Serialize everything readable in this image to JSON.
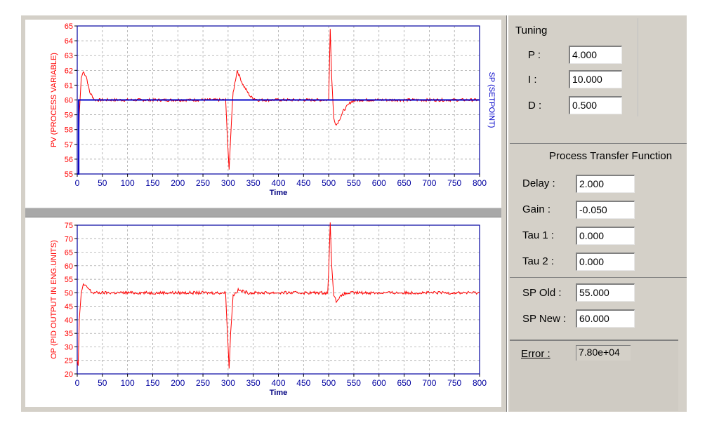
{
  "tuning": {
    "title": "Tuning",
    "p_label": "P :",
    "p_value": "4.000",
    "i_label": "I :",
    "i_value": "10.000",
    "d_label": "D :",
    "d_value": "0.500"
  },
  "process": {
    "title": "Process Transfer Function",
    "delay_label": "Delay :",
    "delay_value": "2.000",
    "gain_label": "Gain :",
    "gain_value": "-0.050",
    "tau1_label": "Tau 1 :",
    "tau1_value": "0.000",
    "tau2_label": "Tau 2 :",
    "tau2_value": "0.000"
  },
  "setpoint": {
    "old_label": "SP Old :",
    "old_value": "55.000",
    "new_label": "SP New :",
    "new_value": "60.000"
  },
  "error": {
    "label": "Error :",
    "value": "7.80e+04"
  },
  "colors": {
    "pv": "#ff0000",
    "sp": "#0000c8",
    "axis_frame": "#0000a0",
    "grid": "#9a9a9a"
  },
  "chart_data": [
    {
      "type": "line",
      "xlabel": "Time",
      "ylabel": "PV (PROCESS VARIABLE)",
      "ylabel_right": "SP (SETPOINT)",
      "xlim": [
        0,
        800
      ],
      "ylim": [
        55,
        65
      ],
      "xticks": [
        0,
        50,
        100,
        150,
        200,
        250,
        300,
        350,
        400,
        450,
        500,
        550,
        600,
        650,
        700,
        750,
        800
      ],
      "yticks": [
        55,
        56,
        57,
        58,
        59,
        60,
        61,
        62,
        63,
        64,
        65
      ],
      "grid": true,
      "series": [
        {
          "name": "PV (PROCESS VARIABLE)",
          "color": "#ff0000",
          "x": [
            0,
            2,
            4,
            8,
            12,
            18,
            25,
            35,
            60,
            100,
            200,
            295,
            300,
            302,
            305,
            310,
            318,
            330,
            345,
            360,
            400,
            480,
            500,
            503,
            506,
            510,
            515,
            520,
            530,
            545,
            560,
            620,
            700,
            800
          ],
          "y": [
            55,
            55,
            59.0,
            61.5,
            61.9,
            61.6,
            60.5,
            60.0,
            60.0,
            60.0,
            60.0,
            60.0,
            56.5,
            55.3,
            57.5,
            60.5,
            62.0,
            61.0,
            60.2,
            60.0,
            60.0,
            60.0,
            60.0,
            64.8,
            61.5,
            58.8,
            58.3,
            58.6,
            59.3,
            59.9,
            60.0,
            60.0,
            60.0,
            60.0
          ]
        },
        {
          "name": "SP (SETPOINT)",
          "color": "#0000c8",
          "x": [
            0,
            3,
            3,
            800
          ],
          "y": [
            55,
            55,
            60,
            60
          ]
        }
      ]
    },
    {
      "type": "line",
      "xlabel": "Time",
      "ylabel": "OP (PID OUTPUT IN ENG.UNITS)",
      "xlim": [
        0,
        800
      ],
      "ylim": [
        20,
        75
      ],
      "xticks": [
        0,
        50,
        100,
        150,
        200,
        250,
        300,
        350,
        400,
        450,
        500,
        550,
        600,
        650,
        700,
        750,
        800
      ],
      "yticks": [
        20,
        25,
        30,
        35,
        40,
        45,
        50,
        55,
        60,
        65,
        70,
        75
      ],
      "grid": true,
      "series": [
        {
          "name": "OP (PID OUTPUT IN ENG.UNITS)",
          "color": "#ff0000",
          "x": [
            0,
            2,
            4,
            8,
            12,
            20,
            30,
            60,
            100,
            200,
            295,
            300,
            302,
            305,
            310,
            320,
            340,
            400,
            498,
            500,
            503,
            506,
            510,
            515,
            520,
            530,
            545,
            560,
            620,
            700,
            800
          ],
          "y": [
            25,
            23,
            40,
            50,
            53,
            52,
            50,
            50,
            50,
            50,
            50,
            30,
            22,
            35,
            49,
            51,
            50,
            50,
            50,
            58,
            76,
            60,
            49,
            47,
            48,
            49.5,
            50,
            50,
            50,
            50,
            50
          ]
        }
      ]
    }
  ]
}
